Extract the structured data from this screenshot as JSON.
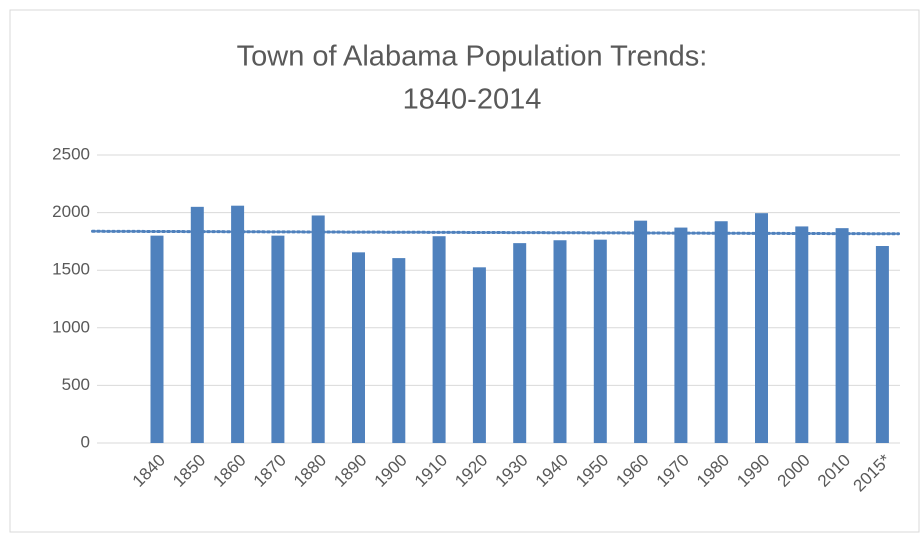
{
  "chart_data": {
    "type": "bar",
    "title": [
      "Town of Alabama Population Trends:",
      "1840-2014"
    ],
    "categories": [
      "1840",
      "1850",
      "1860",
      "1870",
      "1880",
      "1890",
      "1900",
      "1910",
      "1920",
      "1930",
      "1940",
      "1950",
      "1960",
      "1970",
      "1980",
      "1990",
      "2000",
      "2010",
      "2015*"
    ],
    "values": [
      1800,
      2050,
      2060,
      1800,
      1975,
      1655,
      1605,
      1795,
      1525,
      1735,
      1760,
      1765,
      1930,
      1870,
      1925,
      1995,
      1880,
      1865,
      1710
    ],
    "color": "#4f81bd",
    "ylim": [
      0,
      2500
    ],
    "yticks": [
      0,
      500,
      1000,
      1500,
      2000,
      2500
    ],
    "grid": true,
    "trendline": "linear"
  }
}
